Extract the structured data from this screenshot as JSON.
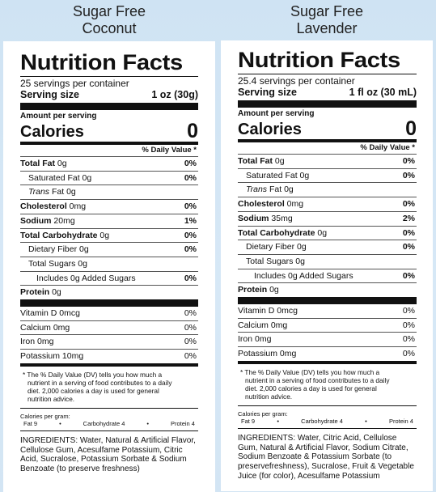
{
  "products": [
    {
      "title_line1": "Sugar Free",
      "title_line2": "Coconut",
      "label_title": "Nutrition Facts",
      "servings_per_container": "25 servings per container",
      "serving_size_label": "Serving size",
      "serving_size_value": "1 oz (30g)",
      "amount_per_serving": "Amount per serving",
      "calories_label": "Calories",
      "calories_value": "0",
      "dv_header": "% Daily Value *",
      "nutrients": [
        {
          "bold": "Total Fat",
          "rest": " 0g",
          "pct": "0%"
        },
        {
          "bold": "",
          "rest": "Saturated Fat 0g",
          "pct": "0%"
        },
        {
          "bold": "",
          "italic": "Trans",
          "rest": " Fat 0g",
          "pct": ""
        },
        {
          "bold": "Cholesterol",
          "rest": " 0mg",
          "pct": "0%"
        },
        {
          "bold": "Sodium",
          "rest": " 20mg",
          "pct": "1%"
        },
        {
          "bold": "Total Carbohydrate",
          "rest": " 0g",
          "pct": "0%"
        },
        {
          "bold": "",
          "rest": "Dietary Fiber 0g",
          "pct": "0%"
        },
        {
          "bold": "",
          "rest": "Total Sugars 0g",
          "pct": ""
        },
        {
          "bold": "",
          "rest": "Includes 0g Added Sugars",
          "pct": "0%"
        },
        {
          "bold": "Protein",
          "rest": " 0g",
          "pct": ""
        }
      ],
      "vitamins": [
        {
          "name": "Vitamin D 0mcg",
          "pct": "0%"
        },
        {
          "name": "Calcium 0mg",
          "pct": "0%"
        },
        {
          "name": "Iron 0mg",
          "pct": "0%"
        },
        {
          "name": "Potassium 10mg",
          "pct": "0%"
        }
      ],
      "footnote": "* The % Daily Value (DV) tells you how much a nutrient in a serving of food contributes to a daily diet. 2,000 calories a day is used for general nutrition advice.",
      "calories_per_gram": "Calories per gram:",
      "cpg_fat": "Fat 9",
      "cpg_carb": "Carbohydrate 4",
      "cpg_protein": "Protein 4",
      "cpg_bullet": "•",
      "ingredients": "INGREDIENTS: Water, Natural & Artificial Flavor, Cellulose Gum, Acesulfame Potassium, Citric Acid, Sucralose, Potassium Sorbate & Sodium Benzoate (to preserve freshness)"
    },
    {
      "title_line1": "Sugar Free",
      "title_line2": "Lavender",
      "label_title": "Nutrition Facts",
      "servings_per_container": "25.4 servings per container",
      "serving_size_label": "Serving size",
      "serving_size_value": "1 fl oz (30 mL)",
      "amount_per_serving": "Amount per serving",
      "calories_label": "Calories",
      "calories_value": "0",
      "dv_header": "% Daily Value *",
      "nutrients": [
        {
          "bold": "Total Fat",
          "rest": " 0g",
          "pct": "0%"
        },
        {
          "bold": "",
          "rest": "Saturated Fat 0g",
          "pct": "0%"
        },
        {
          "bold": "",
          "italic": "Trans",
          "rest": " Fat 0g",
          "pct": ""
        },
        {
          "bold": "Cholesterol",
          "rest": " 0mg",
          "pct": "0%"
        },
        {
          "bold": "Sodium",
          "rest": " 35mg",
          "pct": "2%"
        },
        {
          "bold": "Total Carbohydrate",
          "rest": " 0g",
          "pct": "0%"
        },
        {
          "bold": "",
          "rest": "Dietary Fiber 0g",
          "pct": "0%"
        },
        {
          "bold": "",
          "rest": "Total Sugars 0g",
          "pct": ""
        },
        {
          "bold": "",
          "rest": "Includes 0g Added Sugars",
          "pct": "0%"
        },
        {
          "bold": "Protein",
          "rest": " 0g",
          "pct": ""
        }
      ],
      "vitamins": [
        {
          "name": "Vitamin D 0mcg",
          "pct": "0%"
        },
        {
          "name": "Calcium 0mg",
          "pct": "0%"
        },
        {
          "name": "Iron 0mg",
          "pct": "0%"
        },
        {
          "name": "Potassium 0mg",
          "pct": "0%"
        }
      ],
      "footnote": "* The % Daily Value (DV) tells you how much a nutrient in a serving of food contributes to a daily diet. 2,000 calories a day is used for general nutrition advice.",
      "calories_per_gram": "Calories per gram:",
      "cpg_fat": "Fat 9",
      "cpg_carb": "Carbohydrate 4",
      "cpg_protein": "Protein 4",
      "cpg_bullet": "•",
      "ingredients": "INGREDIENTS: Water, Citric Acid, Cellulose Gum, Natural & Artificial Flavor, Sodium Citrate, Sodium Benzoate & Potassium Sorbate (to preservefreshness), Sucralose, Fruit & Vegetable Juice (for color), Acesulfame Potassium"
    }
  ]
}
